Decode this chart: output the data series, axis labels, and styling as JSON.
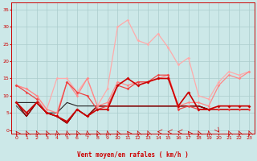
{
  "background_color": "#cce8e8",
  "grid_color": "#aacccc",
  "xlabel": "Vent moyen/en rafales ( km/h )",
  "x_ticks": [
    0,
    1,
    2,
    3,
    4,
    5,
    6,
    7,
    8,
    9,
    10,
    11,
    12,
    13,
    14,
    15,
    16,
    17,
    18,
    19,
    20,
    21,
    22,
    23
  ],
  "y_ticks": [
    0,
    5,
    10,
    15,
    20,
    25,
    30,
    35
  ],
  "ylim": [
    -1,
    37
  ],
  "xlim": [
    -0.5,
    23.5
  ],
  "series": [
    {
      "y": [
        8,
        4,
        8,
        5,
        4,
        2,
        6,
        4,
        7,
        7,
        7,
        7,
        7,
        7,
        7,
        7,
        7,
        7,
        7,
        6,
        6,
        6,
        6,
        6
      ],
      "color": "#990000",
      "lw": 0.9,
      "marker": null,
      "markersize": 0,
      "zorder": 6
    },
    {
      "y": [
        8,
        4,
        8,
        5,
        4,
        2,
        6,
        4,
        7,
        7,
        7,
        7,
        7,
        7,
        7,
        7,
        7,
        7,
        7,
        6,
        6,
        6,
        6,
        6
      ],
      "color": "#660000",
      "lw": 0.8,
      "marker": null,
      "markersize": 0,
      "zorder": 5
    },
    {
      "y": [
        7,
        4,
        8,
        5,
        4,
        2,
        6,
        4,
        7,
        7,
        7,
        7,
        7,
        7,
        7,
        7,
        7,
        7,
        7,
        6,
        6,
        6,
        6,
        6
      ],
      "color": "#444444",
      "lw": 0.8,
      "marker": null,
      "markersize": 0,
      "zorder": 4
    },
    {
      "y": [
        8,
        8,
        8,
        5,
        5,
        8,
        7,
        7,
        7,
        7,
        7,
        7,
        7,
        7,
        7,
        7,
        7,
        7,
        7,
        6,
        6,
        6,
        6,
        6
      ],
      "color": "#222222",
      "lw": 0.8,
      "marker": null,
      "markersize": 0,
      "zorder": 3
    },
    {
      "y": [
        8,
        5,
        8,
        5,
        4,
        2.5,
        6,
        4,
        6,
        6,
        13,
        15,
        13,
        14,
        15,
        15,
        7,
        11,
        6,
        6,
        7,
        7,
        7,
        7
      ],
      "color": "#cc0000",
      "lw": 1.2,
      "marker": "D",
      "markersize": 2.0,
      "zorder": 10
    },
    {
      "y": [
        13,
        11,
        9,
        5,
        4,
        14,
        11,
        10,
        6,
        7,
        13,
        12,
        14,
        14,
        16,
        16,
        6,
        7,
        6,
        6,
        6,
        6,
        6,
        6
      ],
      "color": "#ee4444",
      "lw": 0.9,
      "marker": "D",
      "markersize": 1.8,
      "zorder": 9
    },
    {
      "y": [
        13,
        12,
        10,
        6,
        5,
        14,
        10,
        15,
        7,
        8,
        14,
        13,
        14,
        14,
        15,
        16,
        7,
        8,
        8,
        7,
        13,
        16,
        15,
        17
      ],
      "color": "#ff8888",
      "lw": 0.9,
      "marker": "D",
      "markersize": 1.8,
      "zorder": 8
    },
    {
      "y": [
        13,
        12,
        10,
        6,
        15,
        15,
        11,
        15,
        7,
        12,
        30,
        32,
        26,
        25,
        28,
        24,
        19,
        21,
        10,
        9,
        14,
        17,
        16,
        17
      ],
      "color": "#ffaaaa",
      "lw": 0.9,
      "marker": "D",
      "markersize": 1.8,
      "zorder": 7
    }
  ],
  "tick_color": "#cc0000",
  "label_color": "#cc0000",
  "axis_color": "#cc0000",
  "arrow_angles": [
    225,
    210,
    210,
    210,
    195,
    195,
    210,
    195,
    210,
    195,
    210,
    225,
    210,
    210,
    270,
    270,
    270,
    225,
    210,
    195,
    45,
    210,
    210,
    210
  ]
}
